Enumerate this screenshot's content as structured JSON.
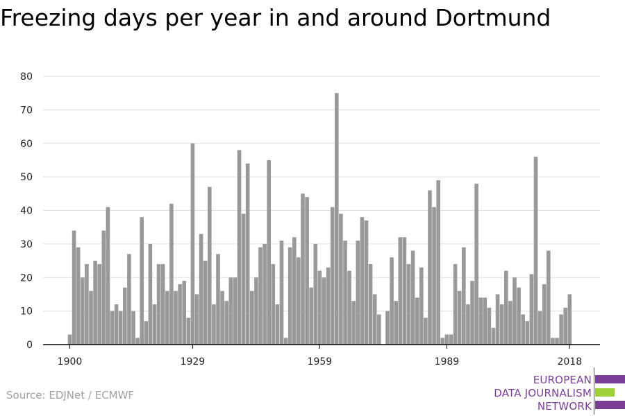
{
  "title": "Freezing days per year in and around Dortmund",
  "source": "Source: EDJNet / ECMWF",
  "logo": {
    "lines": [
      "EUROPEAN",
      "DATA JOURNALISM",
      "NETWORK"
    ],
    "colors": {
      "purple": "#7a3d98",
      "green": "#9dd13a"
    }
  },
  "chart_data": {
    "type": "bar",
    "title": "Freezing days per year in and around Dortmund",
    "xlabel": "",
    "ylabel": "",
    "x_tick_labels": [
      "1900",
      "1929",
      "1959",
      "1989",
      "2018"
    ],
    "y_tick_labels": [
      "0",
      "10",
      "20",
      "30",
      "40",
      "50",
      "60",
      "70",
      "80"
    ],
    "ylim": [
      0,
      80
    ],
    "grid": true,
    "bar_color": "#999999",
    "first_year": 1900,
    "years": [
      1900,
      1901,
      1902,
      1903,
      1904,
      1905,
      1906,
      1907,
      1908,
      1909,
      1910,
      1911,
      1912,
      1913,
      1914,
      1915,
      1916,
      1917,
      1918,
      1919,
      1920,
      1921,
      1922,
      1923,
      1924,
      1925,
      1926,
      1927,
      1928,
      1929,
      1930,
      1931,
      1932,
      1933,
      1934,
      1935,
      1936,
      1937,
      1938,
      1939,
      1940,
      1941,
      1942,
      1943,
      1944,
      1945,
      1946,
      1947,
      1948,
      1949,
      1950,
      1951,
      1952,
      1953,
      1954,
      1955,
      1956,
      1957,
      1958,
      1959,
      1960,
      1961,
      1962,
      1963,
      1964,
      1965,
      1966,
      1967,
      1968,
      1969,
      1970,
      1971,
      1972,
      1973,
      1974,
      1975,
      1976,
      1977,
      1978,
      1979,
      1980,
      1981,
      1982,
      1983,
      1984,
      1985,
      1986,
      1987,
      1988,
      1989,
      1990,
      1991,
      1992,
      1993,
      1994,
      1995,
      1996,
      1997,
      1998,
      1999,
      2000,
      2001,
      2002,
      2003,
      2004,
      2005,
      2006,
      2007,
      2008,
      2009,
      2010,
      2011,
      2012,
      2013,
      2014,
      2015,
      2016,
      2017,
      2018
    ],
    "values": [
      3,
      34,
      29,
      20,
      24,
      16,
      25,
      24,
      34,
      41,
      10,
      12,
      10,
      17,
      27,
      10,
      2,
      38,
      7,
      30,
      12,
      24,
      24,
      16,
      42,
      16,
      18,
      19,
      8,
      60,
      15,
      33,
      25,
      47,
      12,
      27,
      16,
      13,
      20,
      20,
      58,
      39,
      54,
      16,
      20,
      29,
      30,
      55,
      24,
      12,
      31,
      2,
      29,
      32,
      26,
      45,
      44,
      17,
      30,
      22,
      20,
      23,
      41,
      75,
      39,
      31,
      22,
      13,
      31,
      38,
      37,
      24,
      15,
      9,
      0,
      10,
      26,
      13,
      32,
      32,
      24,
      28,
      14,
      23,
      8,
      46,
      41,
      49,
      2,
      3,
      3,
      24,
      16,
      29,
      12,
      19,
      48,
      14,
      14,
      11,
      5,
      15,
      12,
      22,
      13,
      20,
      17,
      9,
      7,
      21,
      56,
      10,
      18,
      28,
      2,
      2,
      9,
      11,
      15
    ]
  }
}
